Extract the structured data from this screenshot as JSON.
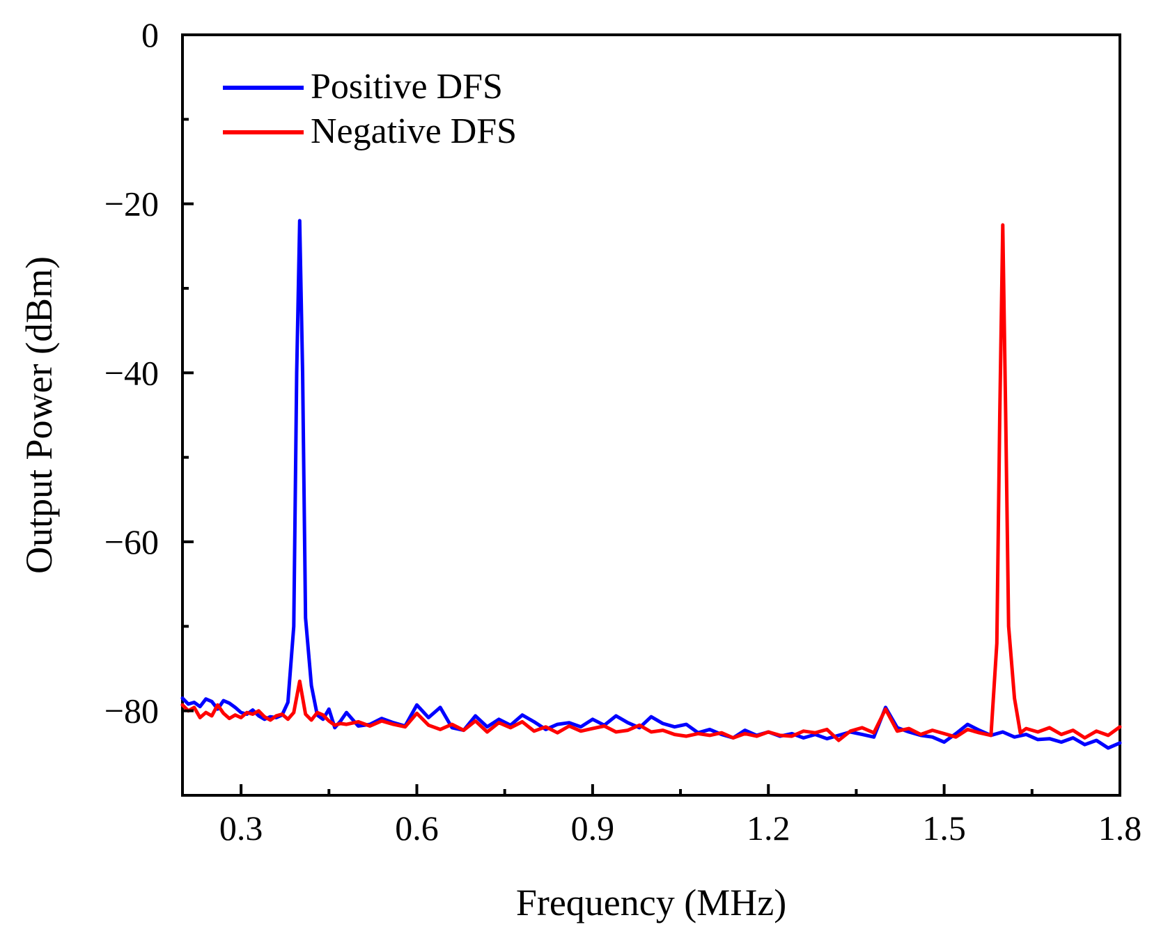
{
  "chart_data": {
    "type": "line",
    "title": "",
    "xlabel": "Frequency (MHz)",
    "ylabel": "Output Power (dBm)",
    "xlim": [
      0.2,
      1.8
    ],
    "ylim": [
      -90,
      0
    ],
    "x_ticks": [
      0.3,
      0.6,
      0.9,
      1.2,
      1.5,
      1.8
    ],
    "x_tick_labels": [
      "0.3",
      "0.6",
      "0.9",
      "1.2",
      "1.5",
      "1.8"
    ],
    "x_minor_ticks": [
      0.45,
      0.75,
      1.05,
      1.35,
      1.65
    ],
    "y_ticks": [
      0,
      -20,
      -40,
      -60,
      -80
    ],
    "y_tick_labels": [
      "0",
      "−20",
      "−40",
      "−60",
      "−80"
    ],
    "y_minor_ticks": [
      -10,
      -30,
      -50,
      -70
    ],
    "grid": false,
    "legend_position": "top-left",
    "series": [
      {
        "name": "Positive DFS",
        "color": "#0000ff",
        "x": [
          0.2,
          0.21,
          0.22,
          0.23,
          0.24,
          0.25,
          0.26,
          0.27,
          0.28,
          0.29,
          0.3,
          0.31,
          0.32,
          0.33,
          0.34,
          0.35,
          0.36,
          0.37,
          0.38,
          0.39,
          0.395,
          0.4,
          0.405,
          0.41,
          0.42,
          0.43,
          0.44,
          0.45,
          0.46,
          0.47,
          0.48,
          0.5,
          0.52,
          0.54,
          0.56,
          0.58,
          0.6,
          0.62,
          0.64,
          0.66,
          0.68,
          0.7,
          0.72,
          0.74,
          0.76,
          0.78,
          0.8,
          0.82,
          0.84,
          0.86,
          0.88,
          0.9,
          0.92,
          0.94,
          0.96,
          0.98,
          1.0,
          1.02,
          1.04,
          1.06,
          1.08,
          1.1,
          1.12,
          1.14,
          1.16,
          1.18,
          1.2,
          1.22,
          1.24,
          1.26,
          1.28,
          1.3,
          1.32,
          1.34,
          1.36,
          1.38,
          1.4,
          1.42,
          1.44,
          1.46,
          1.48,
          1.5,
          1.52,
          1.54,
          1.56,
          1.58,
          1.6,
          1.62,
          1.64,
          1.66,
          1.68,
          1.7,
          1.72,
          1.74,
          1.76,
          1.78,
          1.8
        ],
        "y": [
          -78.5,
          -79.2,
          -79.0,
          -79.5,
          -78.6,
          -78.9,
          -79.8,
          -78.8,
          -79.1,
          -79.6,
          -80.2,
          -80.4,
          -79.9,
          -80.6,
          -81.0,
          -80.7,
          -80.8,
          -80.5,
          -79.0,
          -70.0,
          -40.0,
          -22.0,
          -40.0,
          -69.0,
          -77.0,
          -80.5,
          -81.0,
          -79.8,
          -82.0,
          -81.2,
          -80.2,
          -81.8,
          -81.6,
          -80.9,
          -81.4,
          -81.8,
          -79.3,
          -80.8,
          -79.6,
          -82.0,
          -82.3,
          -80.6,
          -81.9,
          -81.0,
          -81.7,
          -80.5,
          -81.3,
          -82.2,
          -81.6,
          -81.4,
          -81.9,
          -81.0,
          -81.7,
          -80.6,
          -81.4,
          -82.0,
          -80.7,
          -81.5,
          -81.9,
          -81.6,
          -82.6,
          -82.2,
          -82.8,
          -83.2,
          -82.3,
          -82.9,
          -82.5,
          -83.0,
          -82.7,
          -83.2,
          -82.8,
          -83.3,
          -82.9,
          -82.5,
          -82.8,
          -83.1,
          -79.6,
          -82.0,
          -82.5,
          -82.9,
          -83.1,
          -83.7,
          -82.7,
          -81.6,
          -82.3,
          -82.9,
          -82.5,
          -83.1,
          -82.8,
          -83.4,
          -83.3,
          -83.7,
          -83.2,
          -84.0,
          -83.5,
          -84.4,
          -83.8
        ]
      },
      {
        "name": "Negative DFS",
        "color": "#ff0000",
        "x": [
          0.2,
          0.21,
          0.22,
          0.23,
          0.24,
          0.25,
          0.26,
          0.27,
          0.28,
          0.29,
          0.3,
          0.31,
          0.32,
          0.33,
          0.34,
          0.35,
          0.36,
          0.37,
          0.38,
          0.39,
          0.4,
          0.41,
          0.42,
          0.43,
          0.44,
          0.45,
          0.46,
          0.47,
          0.48,
          0.5,
          0.52,
          0.54,
          0.56,
          0.58,
          0.6,
          0.62,
          0.64,
          0.66,
          0.68,
          0.7,
          0.72,
          0.74,
          0.76,
          0.78,
          0.8,
          0.82,
          0.84,
          0.86,
          0.88,
          0.9,
          0.92,
          0.94,
          0.96,
          0.98,
          1.0,
          1.02,
          1.04,
          1.06,
          1.08,
          1.1,
          1.12,
          1.14,
          1.16,
          1.18,
          1.2,
          1.22,
          1.24,
          1.26,
          1.28,
          1.3,
          1.32,
          1.34,
          1.36,
          1.38,
          1.4,
          1.42,
          1.44,
          1.46,
          1.48,
          1.5,
          1.52,
          1.54,
          1.56,
          1.58,
          1.59,
          1.595,
          1.6,
          1.605,
          1.61,
          1.62,
          1.63,
          1.64,
          1.66,
          1.68,
          1.7,
          1.72,
          1.74,
          1.76,
          1.78,
          1.8
        ],
        "y": [
          -79.3,
          -80.0,
          -79.6,
          -80.8,
          -80.2,
          -80.6,
          -79.3,
          -80.3,
          -80.9,
          -80.5,
          -80.8,
          -80.2,
          -80.4,
          -80.0,
          -80.7,
          -81.1,
          -80.6,
          -80.4,
          -81.0,
          -80.2,
          -76.5,
          -80.4,
          -81.1,
          -80.2,
          -80.5,
          -81.2,
          -81.7,
          -81.5,
          -81.6,
          -81.3,
          -81.8,
          -81.2,
          -81.6,
          -81.9,
          -80.3,
          -81.7,
          -82.2,
          -81.6,
          -82.3,
          -81.2,
          -82.5,
          -81.4,
          -82.0,
          -81.3,
          -82.4,
          -81.9,
          -82.6,
          -81.8,
          -82.4,
          -82.1,
          -81.8,
          -82.5,
          -82.3,
          -81.7,
          -82.5,
          -82.3,
          -82.8,
          -83.0,
          -82.7,
          -82.9,
          -82.6,
          -83.2,
          -82.7,
          -83.0,
          -82.5,
          -82.9,
          -83.0,
          -82.4,
          -82.6,
          -82.2,
          -83.5,
          -82.4,
          -82.0,
          -82.6,
          -79.8,
          -82.4,
          -82.1,
          -82.8,
          -82.3,
          -82.7,
          -83.1,
          -82.2,
          -82.6,
          -82.9,
          -72.0,
          -45.0,
          -22.5,
          -45.0,
          -70.0,
          -78.5,
          -82.6,
          -82.1,
          -82.5,
          -82.0,
          -82.8,
          -82.3,
          -83.2,
          -82.4,
          -82.9,
          -81.9
        ]
      }
    ]
  }
}
